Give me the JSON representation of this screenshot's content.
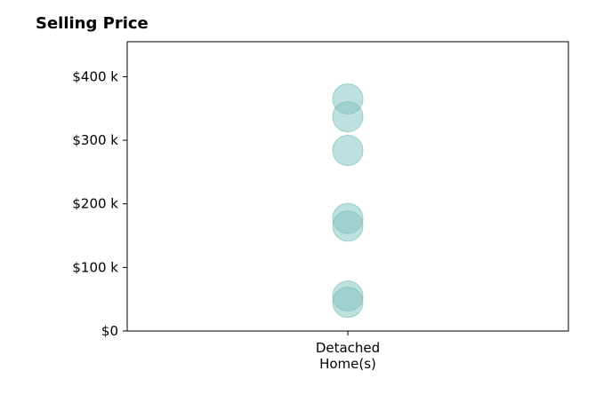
{
  "chart_data": {
    "type": "scatter",
    "title": "Selling Price",
    "xlabel": "",
    "ylabel": "",
    "categories": [
      "Detached\nHome(s)"
    ],
    "ylim": [
      0,
      455000
    ],
    "yticks": [
      0,
      100000,
      200000,
      300000,
      400000
    ],
    "ytick_labels": [
      "$0",
      "$100 k",
      "$200 k",
      "$300 k",
      "$400 k"
    ],
    "grid": false,
    "series": [
      {
        "category": "Detached\nHome(s)",
        "values": [
          365000,
          337000,
          284000,
          177000,
          165000,
          55000,
          45000
        ]
      }
    ],
    "colors": {
      "marker": "#7fc4be",
      "marker_edge": "#6ab8b1",
      "axis": "#000000"
    }
  }
}
